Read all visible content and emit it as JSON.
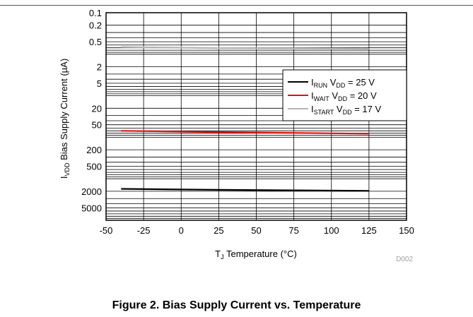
{
  "caption": "Figure 2. Bias Supply Current vs. Temperature",
  "chart_data": {
    "type": "line",
    "title": "",
    "xlabel": {
      "main": "T",
      "sub": "J",
      "rest": " Temperature (°C)"
    },
    "ylabel": {
      "main": "I",
      "sub": "VDD",
      "rest": " Bias Supply Current (µA)"
    },
    "xlim": [
      -50,
      150
    ],
    "ylim": [
      0.1,
      10000
    ],
    "y_scale": "log",
    "y_inverted": true,
    "grid": true,
    "legend_position": "top-right",
    "x_ticks": [
      "-50",
      "-25",
      "0",
      "25",
      "50",
      "75",
      "100",
      "125",
      "150"
    ],
    "y_ticks": [
      "0.1",
      "0.2",
      "0.5",
      "2",
      "5",
      "20",
      "50",
      "200",
      "500",
      "2000",
      "5000"
    ],
    "watermark": "D002",
    "series": [
      {
        "label": {
          "main": "I",
          "sub": "RUN",
          "rest": " V",
          "sub2": "DD",
          "tail": " = 25 V"
        },
        "color": "#000000",
        "x": [
          -40,
          25,
          125
        ],
        "y": [
          1750,
          1850,
          1950
        ]
      },
      {
        "label": {
          "main": "I",
          "sub": "WAIT",
          "rest": " V",
          "sub2": "DD",
          "tail": " = 20 V"
        },
        "color": "#e01010",
        "x": [
          -40,
          25,
          125
        ],
        "y": [
          70,
          75,
          82
        ]
      },
      {
        "label": {
          "main": "I",
          "sub": "START",
          "rest": " V",
          "sub2": "DD",
          "tail": " = 17 V"
        },
        "color": "#b4b4b4",
        "x": [
          -40,
          25,
          125
        ],
        "y": [
          0.67,
          0.71,
          0.74
        ]
      }
    ]
  }
}
